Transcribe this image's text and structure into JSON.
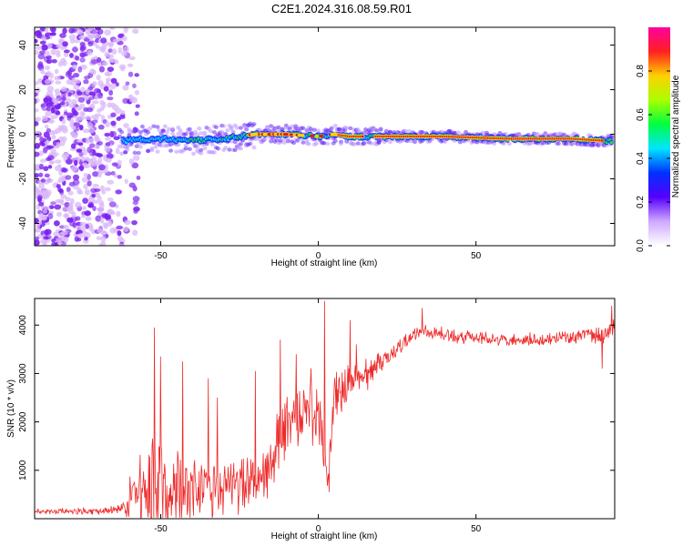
{
  "title": "C2E1.2024.316.08.59.R01",
  "colors": {
    "snr_line": "#ee2a2a",
    "scatter_dot": "#7a1ff0",
    "scatter_light": "#d9b8f8",
    "ridge_hot": "#e8102a"
  },
  "chart_data": [
    {
      "type": "heatmap",
      "xlabel": "Height of straight line (km)",
      "ylabel": "Frequency (Hz)",
      "xlim": [
        -90,
        94
      ],
      "ylim": [
        -50,
        48
      ],
      "x_ticks": [
        -50,
        0,
        50
      ],
      "y_ticks": [
        -40,
        -20,
        0,
        20,
        40
      ],
      "grid": false,
      "ridge_path": [
        {
          "x": -62,
          "y": -3
        },
        {
          "x": -50,
          "y": -2
        },
        {
          "x": -40,
          "y": -3
        },
        {
          "x": -30,
          "y": -2
        },
        {
          "x": -20,
          "y": 0
        },
        {
          "x": -10,
          "y": 0
        },
        {
          "x": 0,
          "y": -1
        },
        {
          "x": 5,
          "y": 0
        },
        {
          "x": 10,
          "y": -1
        },
        {
          "x": 20,
          "y": -1
        },
        {
          "x": 40,
          "y": -1
        },
        {
          "x": 60,
          "y": -2
        },
        {
          "x": 80,
          "y": -2
        },
        {
          "x": 92,
          "y": -3
        }
      ],
      "colorbar": {
        "label": "Normalized spectral amplitude",
        "range": [
          0.0,
          1.0
        ],
        "ticks": [
          "0.0",
          "0.2",
          "0.4",
          "0.6",
          "0.8"
        ],
        "tick_values": [
          0.0,
          0.2,
          0.4,
          0.6,
          0.8
        ],
        "colors": [
          "#ffffff",
          "#cfa8ff",
          "#5500ff",
          "#0030ff",
          "#00e5ff",
          "#00ff40",
          "#aaff00",
          "#ffd000",
          "#ff2020",
          "#ff00a0"
        ]
      }
    },
    {
      "type": "line",
      "xlabel": "Height of straight line (km)",
      "ylabel": "SNR (10 * v/v)",
      "xlim": [
        -90,
        94
      ],
      "ylim": [
        0,
        4550
      ],
      "x_ticks": [
        -50,
        0,
        50
      ],
      "y_ticks": [
        1000,
        2000,
        3000,
        4000
      ],
      "grid": false,
      "envelope": {
        "x": [
          -90,
          -70,
          -62,
          -58,
          -54,
          -51,
          -49,
          -45,
          -40,
          -35,
          -30,
          -25,
          -20,
          -18,
          -15,
          -12,
          -10,
          -8,
          -5,
          -3,
          0,
          2,
          3,
          5,
          8,
          10,
          15,
          20,
          25,
          30,
          35,
          40,
          50,
          60,
          70,
          80,
          90,
          94
        ],
        "base": [
          150,
          150,
          220,
          450,
          700,
          750,
          700,
          650,
          650,
          600,
          650,
          700,
          800,
          900,
          1200,
          1600,
          1800,
          2000,
          2200,
          2300,
          2400,
          1200,
          800,
          2500,
          2700,
          2800,
          3000,
          3200,
          3500,
          3800,
          3850,
          3800,
          3750,
          3700,
          3700,
          3750,
          3800,
          3900
        ],
        "amp": [
          70,
          80,
          150,
          900,
          1300,
          1500,
          1400,
          1100,
          900,
          800,
          700,
          700,
          800,
          900,
          1000,
          900,
          800,
          700,
          800,
          900,
          900,
          500,
          300,
          600,
          500,
          500,
          400,
          300,
          250,
          200,
          180,
          170,
          160,
          160,
          160,
          170,
          200,
          300
        ]
      },
      "spikes": [
        {
          "x": -52,
          "y": 3950
        },
        {
          "x": -50,
          "y": 3350
        },
        {
          "x": -43,
          "y": 3250
        },
        {
          "x": -35,
          "y": 2900
        },
        {
          "x": -32,
          "y": 2500
        },
        {
          "x": -20,
          "y": 3050
        },
        {
          "x": -12,
          "y": 3700
        },
        {
          "x": -7,
          "y": 3400
        },
        {
          "x": 2,
          "y": 4500
        },
        {
          "x": 3.5,
          "y": 550
        },
        {
          "x": 10,
          "y": 4100
        },
        {
          "x": 12,
          "y": 3600
        },
        {
          "x": 33,
          "y": 4350
        },
        {
          "x": 90,
          "y": 3100
        },
        {
          "x": 93,
          "y": 4400
        }
      ]
    }
  ]
}
